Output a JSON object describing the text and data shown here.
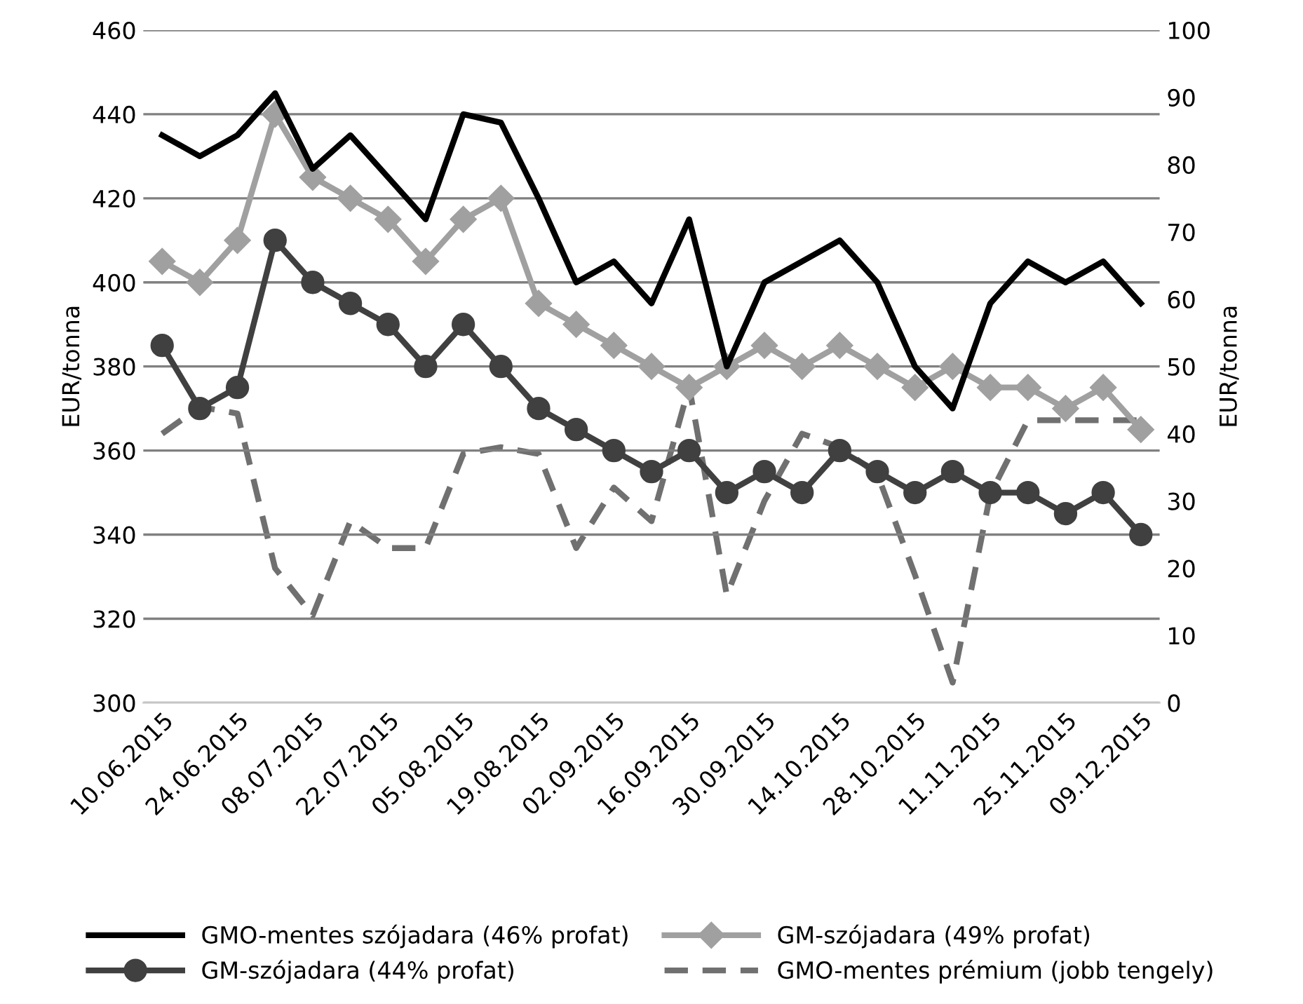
{
  "chart_data": {
    "type": "line",
    "ylabel": "EUR/tonna",
    "y2label": "EUR/tonna",
    "categories": [
      "10.06.2015",
      null,
      "24.06.2015",
      null,
      "08.07.2015",
      null,
      "22.07.2015",
      null,
      "05.08.2015",
      null,
      "19.08.2015",
      null,
      "02.09.2015",
      null,
      "16.09.2015",
      null,
      "30.09.2015",
      null,
      "14.10.2015",
      null,
      "28.10.2015",
      null,
      "11.11.2015",
      null,
      "25.11.2015",
      null,
      "09.12.2015"
    ],
    "ylim": [
      300,
      460
    ],
    "yticks": [
      300,
      320,
      340,
      360,
      380,
      400,
      420,
      440,
      460
    ],
    "y2lim": [
      0,
      100
    ],
    "y2ticks": [
      0,
      10,
      20,
      30,
      40,
      50,
      60,
      70,
      80,
      90,
      100
    ],
    "grid": "y",
    "legend": "bottom",
    "series": [
      {
        "name": "GMO-mentes szójadara (46% profat)",
        "color": "#000000",
        "marker": "none",
        "line_style": "solid",
        "values": [
          435,
          430,
          435,
          445,
          427,
          435,
          425,
          415,
          440,
          438,
          420,
          400,
          405,
          395,
          415,
          380,
          400,
          405,
          410,
          400,
          380,
          370,
          395,
          405,
          400,
          405,
          395
        ]
      },
      {
        "name": "GM-szójadara (44% profat)",
        "color": "#404040",
        "marker": "circle",
        "line_style": "solid",
        "values": [
          385,
          370,
          375,
          410,
          400,
          395,
          390,
          380,
          390,
          380,
          370,
          365,
          360,
          355,
          360,
          350,
          355,
          350,
          360,
          355,
          350,
          355,
          350,
          350,
          345,
          350,
          340
        ]
      },
      {
        "name": "GM-szójadara (49% profat)",
        "color": "#a0a0a0",
        "marker": "diamond",
        "line_style": "solid",
        "values": [
          405,
          400,
          410,
          440,
          425,
          420,
          415,
          405,
          415,
          420,
          395,
          390,
          385,
          380,
          375,
          380,
          385,
          380,
          385,
          380,
          375,
          380,
          375,
          375,
          370,
          375,
          365
        ]
      },
      {
        "name": "GMO-mentes prémium (jobb tengely)",
        "color": "#707070",
        "marker": "none",
        "line_style": "dashed",
        "axis": "y2",
        "values": [
          40,
          44,
          43,
          20,
          13,
          27,
          23,
          23,
          37,
          38,
          37,
          23,
          32,
          27,
          47,
          16,
          30,
          40,
          38,
          34,
          19,
          3,
          31,
          42,
          42,
          42,
          42
        ]
      }
    ]
  }
}
